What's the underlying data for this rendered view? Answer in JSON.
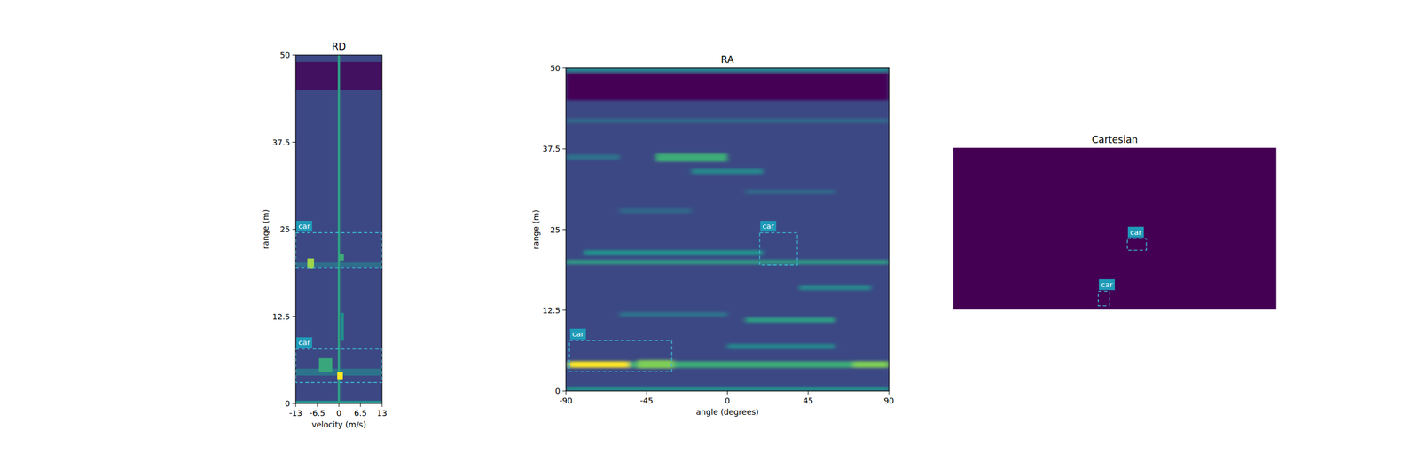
{
  "chart_data": [
    {
      "type": "heatmap",
      "title": "RD",
      "x_label": "velocity (m/s)",
      "y_label": "range (m)",
      "xlim": [
        -13,
        13
      ],
      "ylim": [
        0,
        50
      ],
      "xticks": [
        -13,
        -6.5,
        0,
        6.5,
        13
      ],
      "yticks": [
        0,
        12.5,
        25,
        37.5,
        50
      ],
      "background": 0.22,
      "features": [
        {
          "x": [
            -13,
            13
          ],
          "y": [
            45,
            49
          ],
          "intensity": 0.05
        },
        {
          "x": [
            -13,
            13
          ],
          "y": [
            0,
            0.4
          ],
          "intensity": 0.5
        },
        {
          "x": [
            -13,
            13
          ],
          "y": [
            4,
            5
          ],
          "intensity": 0.38
        },
        {
          "x": [
            -13,
            13
          ],
          "y": [
            19.6,
            20.2
          ],
          "intensity": 0.36
        },
        {
          "x": [
            -0.35,
            0.35
          ],
          "y": [
            0,
            50
          ],
          "intensity": 0.55
        },
        {
          "x": [
            -6,
            -2
          ],
          "y": [
            4.5,
            6.5
          ],
          "intensity": 0.6
        },
        {
          "x": [
            0,
            1.5
          ],
          "y": [
            20.5,
            21.5
          ],
          "intensity": 0.62
        },
        {
          "x": [
            0.5,
            1.5
          ],
          "y": [
            9,
            13
          ],
          "intensity": 0.5
        },
        {
          "x": [
            -9.5,
            -7.5
          ],
          "y": [
            19.4,
            20.8
          ],
          "intensity": 0.85
        },
        {
          "x": [
            -0.5,
            1.2
          ],
          "y": [
            3.5,
            4.5
          ],
          "intensity": 1.0
        }
      ],
      "boxes": [
        {
          "label": "car",
          "x": [
            -13,
            13
          ],
          "y": [
            19.5,
            24.5
          ]
        },
        {
          "label": "car",
          "x": [
            -13,
            13
          ],
          "y": [
            3,
            7.8
          ]
        }
      ]
    },
    {
      "type": "heatmap",
      "title": "RA",
      "x_label": "angle (degrees)",
      "y_label": "range (m)",
      "xlim": [
        -90,
        90
      ],
      "ylim": [
        0,
        50
      ],
      "xticks": [
        -90,
        -45,
        0,
        45,
        90
      ],
      "yticks": [
        0,
        12.5,
        25,
        37.5,
        50
      ],
      "background": 0.22,
      "features": [
        {
          "x": [
            -90,
            90
          ],
          "y": [
            45,
            49.2
          ],
          "intensity": 0.0
        },
        {
          "x": [
            -90,
            90
          ],
          "y": [
            49.5,
            50
          ],
          "intensity": 0.5
        },
        {
          "x": [
            -90,
            90
          ],
          "y": [
            0,
            0.6
          ],
          "intensity": 0.5
        },
        {
          "x": [
            -90,
            90
          ],
          "y": [
            41.5,
            42.2
          ],
          "intensity": 0.34
        },
        {
          "x": [
            -40,
            0
          ],
          "y": [
            35.5,
            36.8
          ],
          "intensity": 0.62
        },
        {
          "x": [
            -90,
            -60
          ],
          "y": [
            35.8,
            36.6
          ],
          "intensity": 0.38
        },
        {
          "x": [
            -20,
            20
          ],
          "y": [
            33.6,
            34.4
          ],
          "intensity": 0.46
        },
        {
          "x": [
            10,
            60
          ],
          "y": [
            30.5,
            31.2
          ],
          "intensity": 0.34
        },
        {
          "x": [
            -60,
            -20
          ],
          "y": [
            27.5,
            28.3
          ],
          "intensity": 0.33
        },
        {
          "x": [
            -80,
            20
          ],
          "y": [
            21,
            21.8
          ],
          "intensity": 0.5
        },
        {
          "x": [
            -90,
            90
          ],
          "y": [
            19.6,
            20.3
          ],
          "intensity": 0.55
        },
        {
          "x": [
            40,
            80
          ],
          "y": [
            15.6,
            16.4
          ],
          "intensity": 0.46
        },
        {
          "x": [
            10,
            60
          ],
          "y": [
            10.6,
            11.4
          ],
          "intensity": 0.55
        },
        {
          "x": [
            -60,
            0
          ],
          "y": [
            11.5,
            12.2
          ],
          "intensity": 0.38
        },
        {
          "x": [
            0,
            60
          ],
          "y": [
            6.5,
            7.3
          ],
          "intensity": 0.45
        },
        {
          "x": [
            -90,
            90
          ],
          "y": [
            3.6,
            4.6
          ],
          "intensity": 0.62
        },
        {
          "x": [
            -50,
            -30
          ],
          "y": [
            3.5,
            4.8
          ],
          "intensity": 0.8
        },
        {
          "x": [
            -88,
            -55
          ],
          "y": [
            3.6,
            4.6
          ],
          "intensity": 1.0
        },
        {
          "x": [
            70,
            90
          ],
          "y": [
            3.6,
            4.6
          ],
          "intensity": 0.8
        }
      ],
      "boxes": [
        {
          "label": "car",
          "x": [
            18,
            39
          ],
          "y": [
            19.5,
            24.5
          ]
        },
        {
          "label": "car",
          "x": [
            -88,
            -31
          ],
          "y": [
            3,
            7.8
          ]
        }
      ]
    },
    {
      "type": "heatmap",
      "title": "Cartesian",
      "tick_labels": false,
      "xlim": [
        -50,
        50
      ],
      "ylim": [
        0,
        50
      ],
      "background": 0.0,
      "features": [],
      "boxes": [
        {
          "label": "car",
          "x": [
            3.9,
            9.8
          ],
          "y": [
            18.3,
            21.9
          ]
        },
        {
          "label": "car",
          "x": [
            -5.1,
            -1.7
          ],
          "y": [
            1.1,
            5.6
          ]
        }
      ]
    }
  ]
}
